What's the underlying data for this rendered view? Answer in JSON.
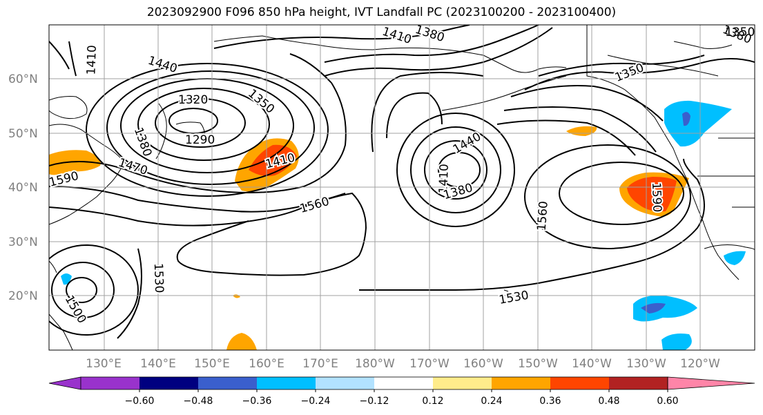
{
  "title": "2023092900 F096 850 hPa height, IVT Landfall PC (2023100200 - 2023100400)",
  "map": {
    "lat_ticks": [
      "60°N",
      "50°N",
      "40°N",
      "30°N",
      "20°N"
    ],
    "lon_ticks": [
      "130°E",
      "140°E",
      "150°E",
      "160°E",
      "170°E",
      "180°W",
      "170°W",
      "160°W",
      "150°W",
      "140°W",
      "130°W",
      "120°W"
    ],
    "contour_labels": [
      "1410",
      "1440",
      "1320",
      "1350",
      "1380",
      "1290",
      "1410",
      "1470",
      "1380",
      "1410",
      "1350",
      "1380",
      "1440",
      "1410",
      "1380",
      "1560",
      "1560",
      "1590",
      "1530",
      "1530",
      "1500",
      "1350",
      "1590"
    ],
    "colors": {
      "contour": "#000000",
      "gridline": "#a0a0a0",
      "coastline": "#000000"
    }
  },
  "colorbar": {
    "colors": [
      "#9932CC",
      "#000080",
      "#3a5fcd",
      "#00bfff",
      "#b2e2ff",
      "#ffffff",
      "#ffec8b",
      "#ffa500",
      "#ff4500",
      "#b22222",
      "#ff85a8"
    ],
    "ticks": [
      "−0.60",
      "−0.48",
      "−0.36",
      "−0.24",
      "−0.12",
      "0.12",
      "0.24",
      "0.36",
      "0.48",
      "0.60"
    ]
  }
}
